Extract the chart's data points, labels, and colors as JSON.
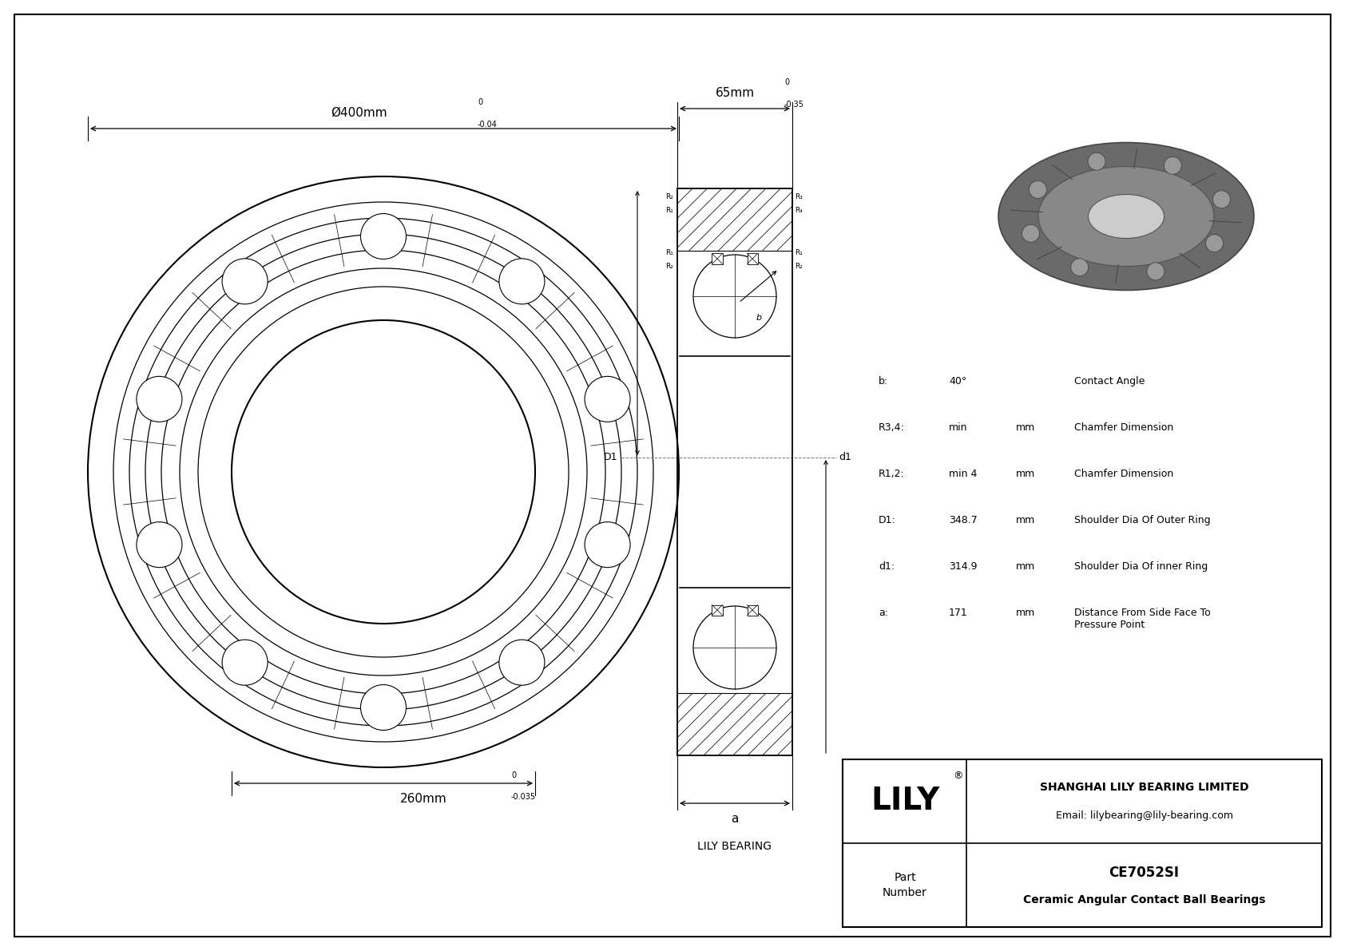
{
  "bg_color": "#ffffff",
  "outer_diameter_label": "Ø400mm",
  "outer_diameter_tol_top": "0",
  "outer_diameter_tol_bot": "-0.04",
  "inner_diameter_label": "260mm",
  "inner_diameter_tol_top": "0",
  "inner_diameter_tol_bot": "-0.035",
  "width_label": "65mm",
  "width_tol_top": "0",
  "width_tol_bot": "-0.35",
  "specs": [
    {
      "param": "b:",
      "value": "40°",
      "unit": "",
      "desc": "Contact Angle"
    },
    {
      "param": "R3,4:",
      "value": "min",
      "unit": "mm",
      "desc": "Chamfer Dimension"
    },
    {
      "param": "R1,2:",
      "value": "min 4",
      "unit": "mm",
      "desc": "Chamfer Dimension"
    },
    {
      "param": "D1:",
      "value": "348.7",
      "unit": "mm",
      "desc": "Shoulder Dia Of Outer Ring"
    },
    {
      "param": "d1:",
      "value": "314.9",
      "unit": "mm",
      "desc": "Shoulder Dia Of inner Ring"
    },
    {
      "param": "a:",
      "value": "171",
      "unit": "mm",
      "desc": "Distance From Side Face To\nPressure Point"
    }
  ],
  "company_full": "SHANGHAI LILY BEARING LIMITED",
  "company_email": "Email: lilybearing@lily-bearing.com",
  "part_number": "CE7052SI",
  "part_type": "Ceramic Angular Contact Ball Bearings",
  "lily_bearing_label": "LILY BEARING",
  "a_label": "a",
  "D1_label": "D1",
  "d1_label": "d1"
}
